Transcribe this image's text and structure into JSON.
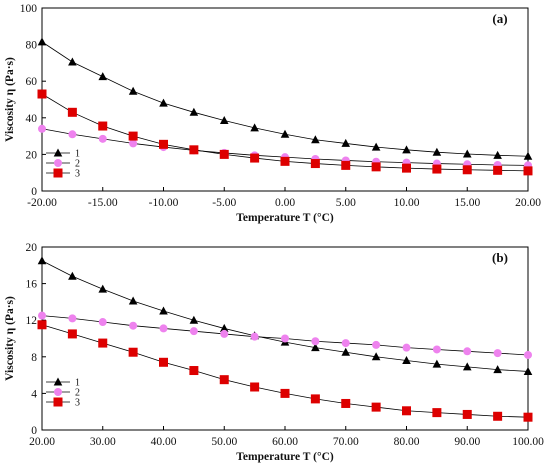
{
  "chart_data": [
    {
      "type": "line",
      "panel_label": "(a)",
      "xlabel": "Temperature  T  (°C)",
      "ylabel": "Viscosity  η  (Pa·s)",
      "xlim": [
        -20,
        20
      ],
      "ylim": [
        0,
        100
      ],
      "xticks": [
        -20,
        -15,
        -10,
        -5,
        0,
        5,
        10,
        15,
        20
      ],
      "xtick_labels": [
        "-20.00",
        "-15.00",
        "-10.00",
        "-5.00",
        "0.00",
        "5.00",
        "10.00",
        "15.00",
        "20.00"
      ],
      "yticks": [
        0,
        20,
        40,
        60,
        80,
        100
      ],
      "ytick_labels": [
        "0",
        "20",
        "40",
        "60",
        "80",
        "100"
      ],
      "grid": false,
      "legend_position": "left",
      "series": [
        {
          "name": "1",
          "marker": "triangle",
          "color": "#000000",
          "x": [
            -20,
            -17.5,
            -15,
            -12.5,
            -10,
            -7.5,
            -5,
            -2.5,
            0,
            2.5,
            5,
            7.5,
            10,
            12.5,
            15,
            17.5,
            20
          ],
          "values": [
            81.5,
            70.5,
            62.5,
            54.5,
            48,
            43,
            38.5,
            34.5,
            31,
            28,
            26,
            24,
            22.5,
            21.2,
            20.2,
            19.5,
            19
          ]
        },
        {
          "name": "2",
          "marker": "circle",
          "color": "#ee82ee",
          "x": [
            -20,
            -17.5,
            -15,
            -12.5,
            -10,
            -7.5,
            -5,
            -2.5,
            0,
            2.5,
            5,
            7.5,
            10,
            12.5,
            15,
            17.5,
            20
          ],
          "values": [
            34,
            31,
            28.5,
            26,
            24,
            22.2,
            20.8,
            19.5,
            18.5,
            17.5,
            16.7,
            16,
            15.5,
            15,
            14.6,
            14.2,
            14
          ]
        },
        {
          "name": "3",
          "marker": "square",
          "color": "#dd0000",
          "x": [
            -20,
            -17.5,
            -15,
            -12.5,
            -10,
            -7.5,
            -5,
            -2.5,
            0,
            2.5,
            5,
            7.5,
            10,
            12.5,
            15,
            17.5,
            20
          ],
          "values": [
            53,
            43,
            35.5,
            30,
            25.5,
            22.5,
            20,
            18,
            16.2,
            15,
            14,
            13.2,
            12.5,
            12,
            11.6,
            11.3,
            11
          ]
        }
      ],
      "legend": [
        "1",
        "2",
        "3"
      ]
    },
    {
      "type": "line",
      "panel_label": "(b)",
      "xlabel": "Temperature  T  (°C)",
      "ylabel": "Viscosity  η  (Pa·s)",
      "xlim": [
        20,
        100
      ],
      "ylim": [
        0,
        20
      ],
      "xticks": [
        20,
        30,
        40,
        50,
        60,
        70,
        80,
        90,
        100
      ],
      "xtick_labels": [
        "20.00",
        "30.00",
        "40.00",
        "50.00",
        "60.00",
        "70.00",
        "80.00",
        "90.00",
        "100.00"
      ],
      "yticks": [
        0,
        4,
        8,
        12,
        16,
        20
      ],
      "ytick_labels": [
        "0",
        "4",
        "8",
        "12",
        "16",
        "20"
      ],
      "grid": false,
      "legend_position": "left",
      "series": [
        {
          "name": "1",
          "marker": "triangle",
          "color": "#000000",
          "x": [
            20,
            25,
            30,
            35,
            40,
            45,
            50,
            55,
            60,
            65,
            70,
            75,
            80,
            85,
            90,
            95,
            100
          ],
          "values": [
            18.5,
            16.8,
            15.4,
            14.1,
            13,
            12,
            11.1,
            10.3,
            9.6,
            9,
            8.5,
            8,
            7.6,
            7.2,
            6.9,
            6.6,
            6.4
          ]
        },
        {
          "name": "2",
          "marker": "circle",
          "color": "#ee82ee",
          "x": [
            20,
            25,
            30,
            35,
            40,
            45,
            50,
            55,
            60,
            65,
            70,
            75,
            80,
            85,
            90,
            95,
            100
          ],
          "values": [
            12.5,
            12.2,
            11.8,
            11.4,
            11.1,
            10.8,
            10.5,
            10.2,
            10,
            9.7,
            9.5,
            9.3,
            9,
            8.8,
            8.6,
            8.4,
            8.2
          ]
        },
        {
          "name": "3",
          "marker": "square",
          "color": "#dd0000",
          "x": [
            20,
            25,
            30,
            35,
            40,
            45,
            50,
            55,
            60,
            65,
            70,
            75,
            80,
            85,
            90,
            95,
            100
          ],
          "values": [
            11.5,
            10.5,
            9.5,
            8.5,
            7.4,
            6.5,
            5.5,
            4.7,
            4,
            3.4,
            2.9,
            2.5,
            2.1,
            1.9,
            1.7,
            1.5,
            1.4
          ]
        }
      ],
      "legend": [
        "1",
        "2",
        "3"
      ]
    }
  ]
}
